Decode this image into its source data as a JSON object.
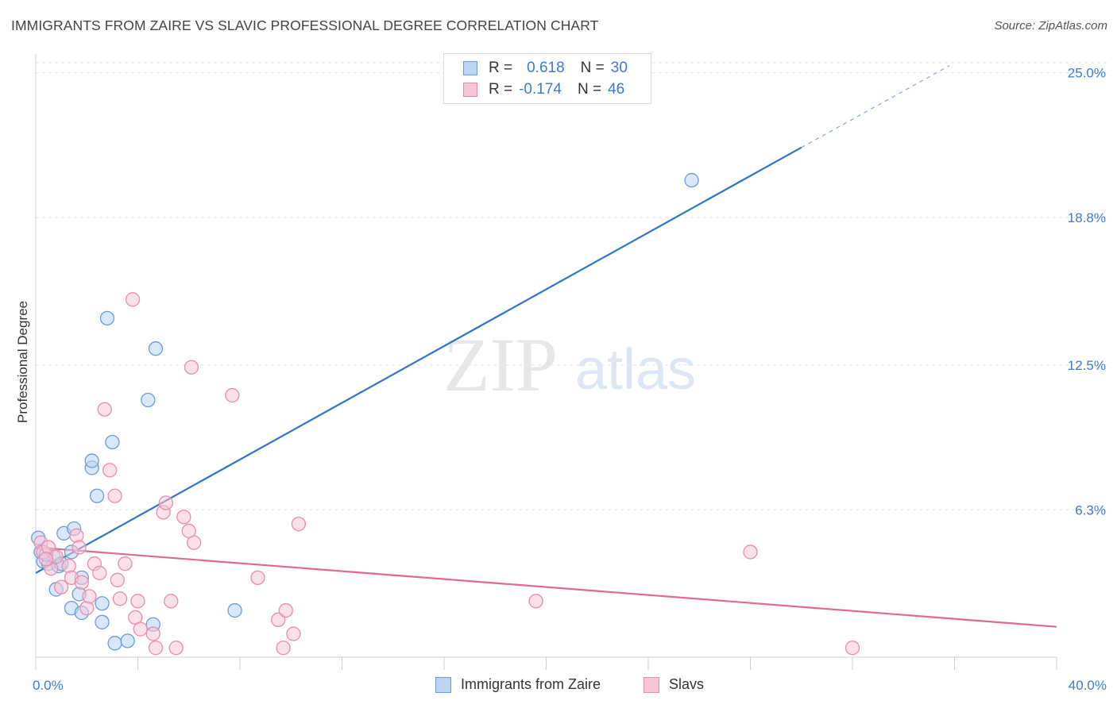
{
  "header": {
    "title": "IMMIGRANTS FROM ZAIRE VS SLAVIC PROFESSIONAL DEGREE CORRELATION CHART",
    "source": "Source: ZipAtlas.com"
  },
  "watermark": {
    "zip": "ZIP",
    "atlas": "atlas"
  },
  "legend": {
    "rows": [
      {
        "r_label": "R =",
        "r_value": "0.618",
        "n_label": "N =",
        "n_value": "30"
      },
      {
        "r_label": "R =",
        "r_value": "-0.174",
        "n_label": "N =",
        "n_value": "46"
      }
    ]
  },
  "bottom_legend": {
    "items": [
      {
        "label": "Immigrants from Zaire"
      },
      {
        "label": "Slavs"
      }
    ]
  },
  "colors": {
    "blue_stroke": "#6a9bd8",
    "blue_fill": "#bcd3f2",
    "blue_line": "#2f74c8",
    "pink_stroke": "#e98cab",
    "pink_fill": "#f6c6d6",
    "pink_line": "#e06894",
    "tick_text": "#3d7bd0",
    "grid": "#e3e3e3"
  },
  "chart_data": {
    "type": "scatter",
    "title": "IMMIGRANTS FROM ZAIRE VS SLAVIC PROFESSIONAL DEGREE CORRELATION CHART",
    "xlabel": "",
    "ylabel": "Professional Degree",
    "xlim": [
      0,
      40
    ],
    "ylim": [
      0,
      25.8
    ],
    "x_tick_labels": [
      "0.0%",
      "40.0%"
    ],
    "y_ticks": [
      6.3,
      12.5,
      18.8,
      25.0
    ],
    "y_tick_labels": [
      "6.3%",
      "12.5%",
      "18.8%",
      "25.0%"
    ],
    "grid": true,
    "series": [
      {
        "name": "Immigrants from Zaire",
        "color": "blue",
        "points": [
          [
            0.1,
            5.1
          ],
          [
            0.2,
            4.5
          ],
          [
            0.3,
            4.1
          ],
          [
            0.5,
            4.0
          ],
          [
            0.7,
            4.3
          ],
          [
            0.9,
            3.9
          ],
          [
            1.0,
            4.0
          ],
          [
            0.8,
            2.9
          ],
          [
            1.1,
            5.3
          ],
          [
            1.4,
            4.5
          ],
          [
            1.5,
            5.5
          ],
          [
            1.7,
            2.7
          ],
          [
            1.8,
            3.4
          ],
          [
            1.4,
            2.1
          ],
          [
            1.8,
            1.9
          ],
          [
            2.6,
            2.3
          ],
          [
            2.6,
            1.5
          ],
          [
            2.2,
            8.1
          ],
          [
            2.2,
            8.4
          ],
          [
            2.4,
            6.9
          ],
          [
            2.8,
            14.5
          ],
          [
            3.0,
            9.2
          ],
          [
            3.1,
            0.6
          ],
          [
            3.6,
            0.7
          ],
          [
            4.4,
            11.0
          ],
          [
            4.6,
            1.4
          ],
          [
            4.7,
            13.2
          ],
          [
            7.8,
            2.0
          ],
          [
            25.7,
            20.4
          ],
          [
            0.4,
            4.4
          ]
        ]
      },
      {
        "name": "Slavs",
        "color": "pink",
        "points": [
          [
            0.2,
            4.9
          ],
          [
            0.3,
            4.5
          ],
          [
            0.5,
            4.7
          ],
          [
            0.6,
            3.8
          ],
          [
            0.8,
            4.3
          ],
          [
            1.0,
            3.0
          ],
          [
            1.3,
            3.9
          ],
          [
            1.4,
            3.4
          ],
          [
            1.6,
            5.2
          ],
          [
            1.7,
            4.7
          ],
          [
            1.8,
            3.2
          ],
          [
            2.0,
            2.1
          ],
          [
            2.1,
            2.6
          ],
          [
            2.3,
            4.0
          ],
          [
            2.5,
            3.6
          ],
          [
            2.7,
            10.6
          ],
          [
            2.9,
            8.0
          ],
          [
            3.1,
            6.9
          ],
          [
            3.2,
            3.3
          ],
          [
            3.3,
            2.5
          ],
          [
            3.5,
            4.0
          ],
          [
            3.8,
            15.3
          ],
          [
            3.9,
            1.7
          ],
          [
            4.0,
            2.4
          ],
          [
            4.1,
            1.2
          ],
          [
            4.6,
            1.0
          ],
          [
            4.7,
            0.4
          ],
          [
            5.0,
            6.2
          ],
          [
            5.1,
            6.6
          ],
          [
            5.3,
            2.4
          ],
          [
            5.5,
            0.4
          ],
          [
            5.8,
            6.0
          ],
          [
            6.1,
            12.4
          ],
          [
            6.2,
            4.9
          ],
          [
            6.0,
            5.4
          ],
          [
            7.7,
            11.2
          ],
          [
            8.7,
            3.4
          ],
          [
            9.5,
            1.6
          ],
          [
            9.7,
            0.4
          ],
          [
            9.8,
            2.0
          ],
          [
            10.1,
            1.0
          ],
          [
            10.3,
            5.7
          ],
          [
            19.6,
            2.4
          ],
          [
            28.0,
            4.5
          ],
          [
            32.0,
            0.4
          ],
          [
            0.4,
            4.2
          ]
        ]
      }
    ],
    "trend_lines": [
      {
        "series": "Immigrants from Zaire",
        "x_start": 0,
        "y_start": 3.6,
        "x_end": 30.0,
        "y_end": 21.8,
        "dashed_to_x": 35.8,
        "dashed_to_y": 25.3
      },
      {
        "series": "Slavs",
        "x_start": 0,
        "y_start": 4.7,
        "x_end": 40.0,
        "y_end": 1.3
      }
    ]
  }
}
